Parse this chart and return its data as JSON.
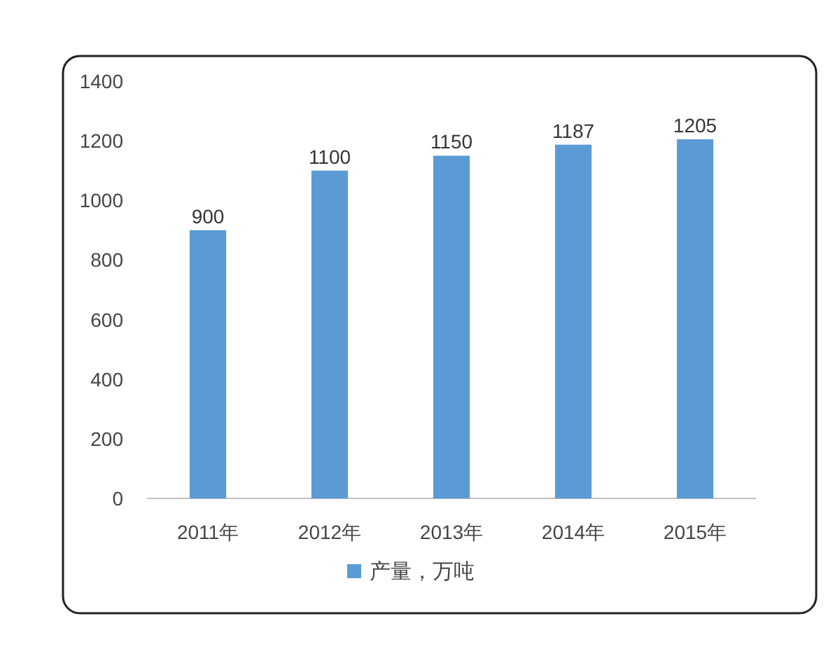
{
  "chart_data": {
    "type": "bar",
    "categories": [
      "2011年",
      "2012年",
      "2013年",
      "2014年",
      "2015年"
    ],
    "series": [
      {
        "name": "产量，万吨",
        "color": "#5b9bd5",
        "values": [
          900,
          1100,
          1150,
          1187,
          1205
        ]
      }
    ],
    "ylim": [
      0,
      1400
    ],
    "yticks": [
      0,
      200,
      400,
      600,
      800,
      1000,
      1200,
      1400
    ],
    "data_labels": true,
    "legend": "bottom",
    "grid": false
  }
}
